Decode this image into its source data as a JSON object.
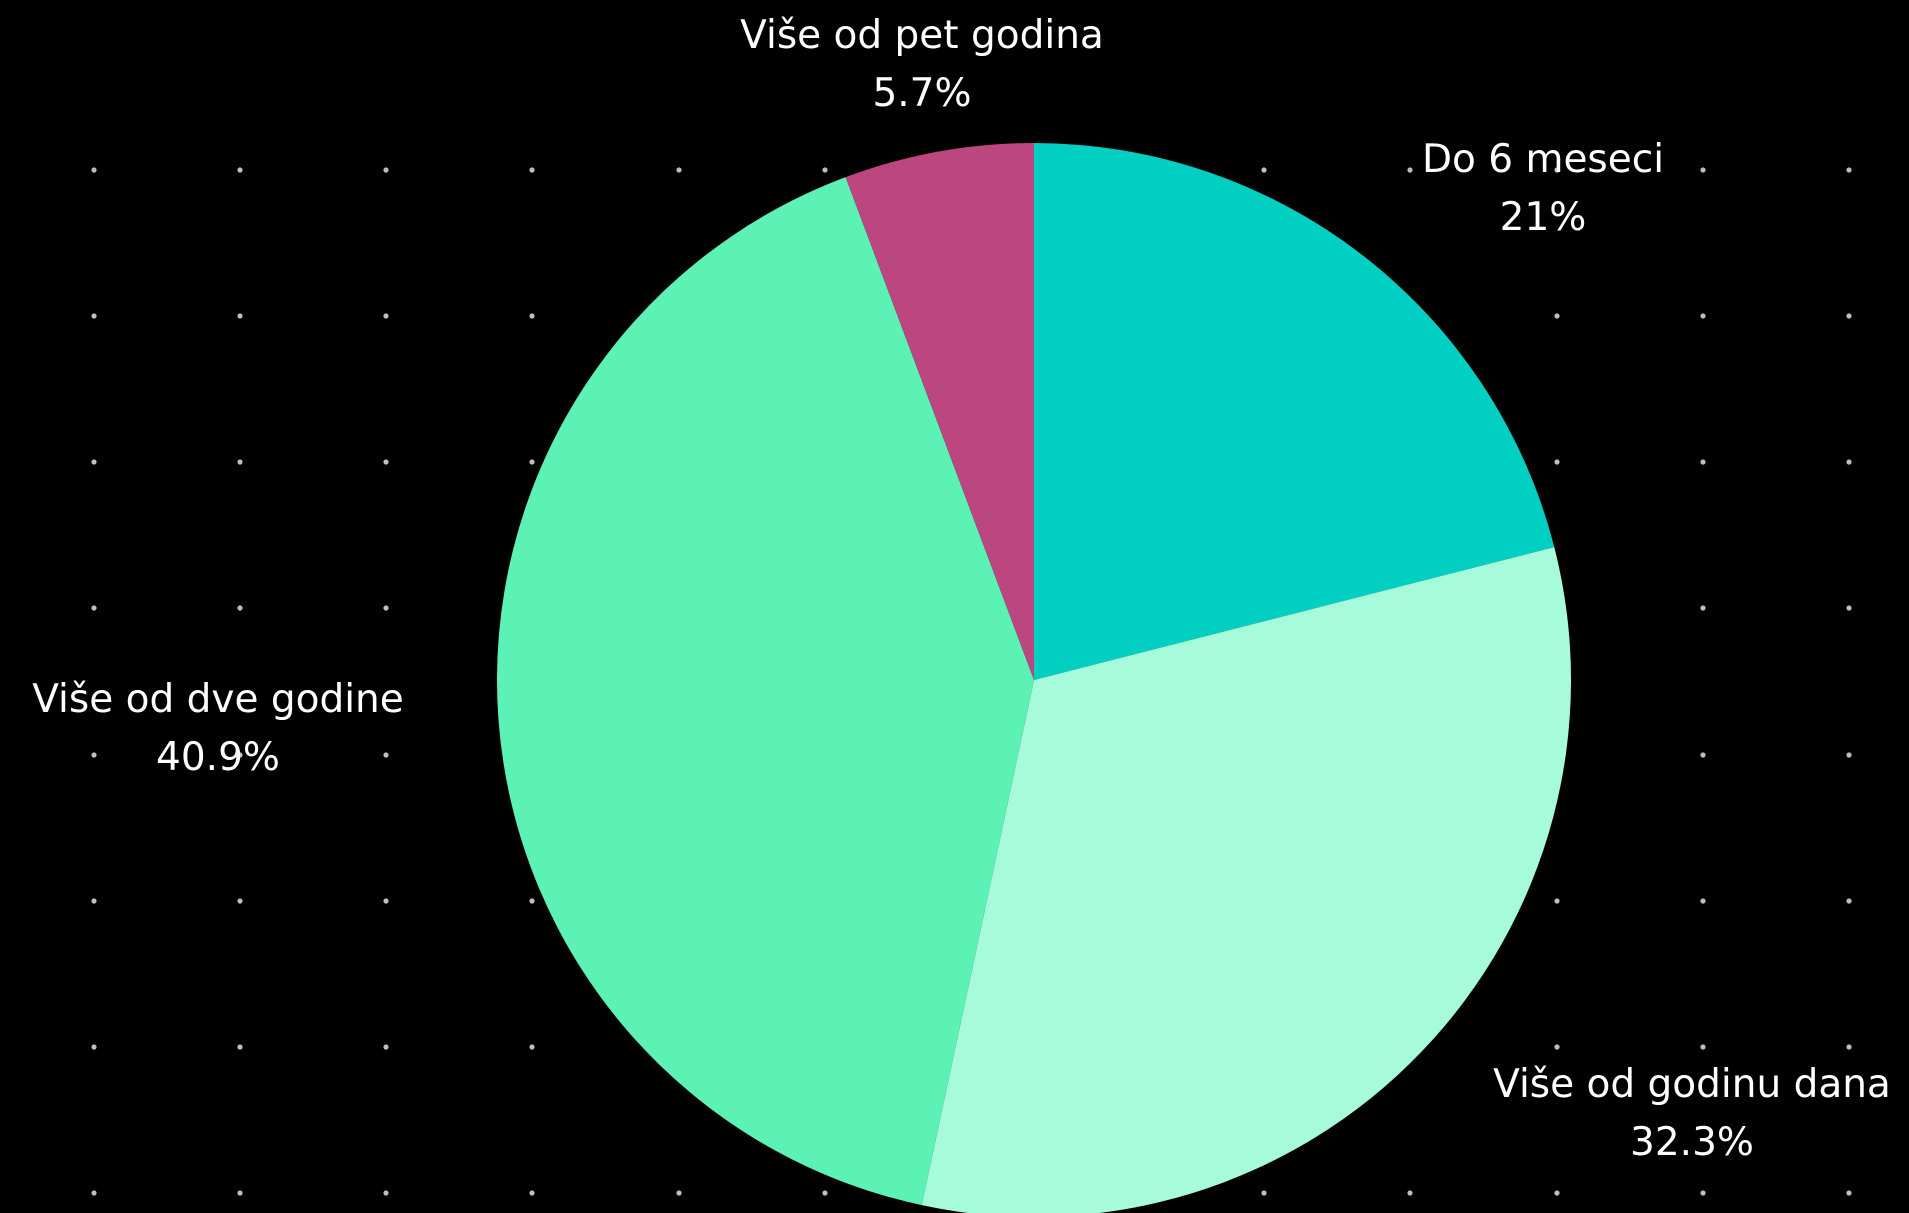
{
  "chart_data": {
    "type": "pie",
    "title": "",
    "start_angle_deg": 0,
    "direction": "clockwise",
    "background_color": "#000000",
    "slices": [
      {
        "label": "Do 6 meseci",
        "value": 21,
        "value_label": "21%",
        "color": "#00CFC2"
      },
      {
        "label": "Više od godinu dana",
        "value": 32.3,
        "value_label": "32.3%",
        "color": "#A6FCDA"
      },
      {
        "label": "Više od dve godine",
        "value": 40.9,
        "value_label": "40.9%",
        "color": "#5CF2B6"
      },
      {
        "label": "Više od pet godina",
        "value": 5.7,
        "value_label": "5.7%",
        "color": "#BC4680"
      }
    ],
    "label_anchors": [
      "top-right",
      "bottom-right",
      "left",
      "top"
    ],
    "grid": true,
    "grid_style": "dots",
    "legend": "none"
  }
}
